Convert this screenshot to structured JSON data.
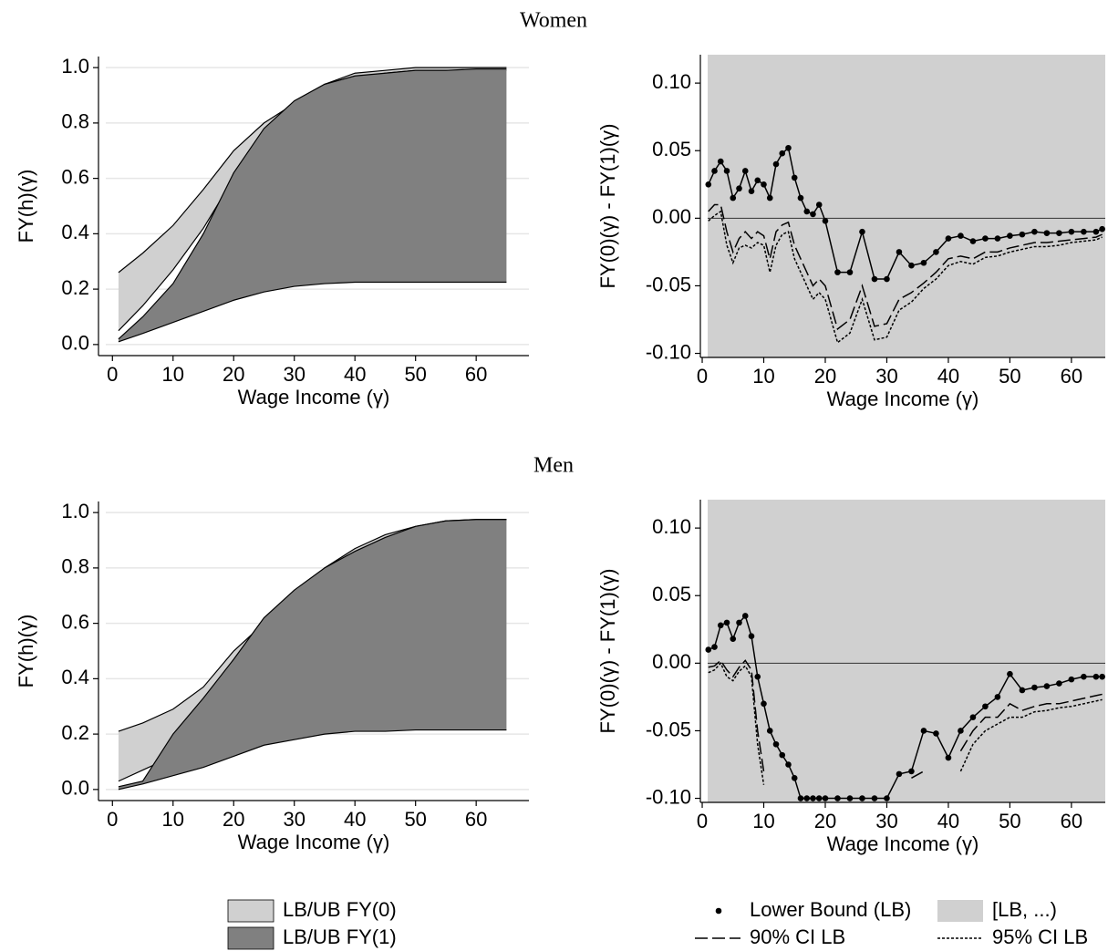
{
  "chart_data": [
    {
      "type": "area",
      "title": "Women",
      "x_label": "Wage Income (γ)",
      "y_label": "FY(h)(γ)",
      "x": [
        1,
        5,
        10,
        15,
        20,
        25,
        30,
        35,
        40,
        45,
        50,
        55,
        60,
        65
      ],
      "xlim": [
        -2.3,
        68.7
      ],
      "ylim": [
        -0.04,
        1.04
      ],
      "xticks": [
        0,
        10,
        20,
        30,
        40,
        50,
        60
      ],
      "yticks": [
        {
          "value": 0,
          "label": "0.0"
        },
        {
          "value": 0.2,
          "label": "0.2"
        },
        {
          "value": 0.4,
          "label": "0.4"
        },
        {
          "value": 0.6,
          "label": "0.6"
        },
        {
          "value": 0.8,
          "label": "0.8"
        },
        {
          "value": 1,
          "label": "1.0"
        }
      ],
      "grid": true,
      "series": [
        {
          "color": "#d0d0d0",
          "lower": [
            0.05,
            0.14,
            0.27,
            0.42,
            0.6,
            0.73,
            0.85,
            0.92,
            0.96,
            0.98,
            0.99,
            0.99,
            0.99,
            0.99
          ],
          "upper": [
            0.26,
            0.33,
            0.43,
            0.56,
            0.7,
            0.8,
            0.87,
            0.94,
            0.98,
            0.99,
            1,
            1,
            1,
            1
          ]
        },
        {
          "color": "#808080",
          "lower": [
            0.01,
            0.04,
            0.08,
            0.12,
            0.16,
            0.19,
            0.21,
            0.22,
            0.225,
            0.225,
            0.225,
            0.225,
            0.225,
            0.225
          ],
          "upper": [
            0.02,
            0.1,
            0.22,
            0.4,
            0.62,
            0.78,
            0.88,
            0.94,
            0.97,
            0.98,
            0.99,
            0.99,
            0.995,
            0.995
          ]
        }
      ]
    },
    {
      "type": "line",
      "x_label": "Wage Income (γ)",
      "y_label": "FY(0)(γ) - FY(1)(γ)",
      "x": [
        1,
        2,
        3,
        4,
        5,
        6,
        7,
        8,
        9,
        10,
        11,
        12,
        13,
        14,
        15,
        16,
        17,
        18,
        19,
        20,
        22,
        24,
        26,
        28,
        30,
        32,
        34,
        36,
        38,
        40,
        42,
        44,
        46,
        48,
        50,
        52,
        54,
        56,
        58,
        60,
        62,
        64,
        65
      ],
      "xlim": [
        -0.3,
        65.5
      ],
      "ylim": [
        -0.103,
        0.121
      ],
      "xticks": [
        0,
        10,
        20,
        30,
        40,
        50,
        60
      ],
      "yticks": [
        {
          "value": 0.1,
          "label": "0.10"
        },
        {
          "value": 0.05,
          "label": "0.05"
        },
        {
          "value": 0,
          "label": "0.00"
        },
        {
          "value": -0.05,
          "label": "-0.05"
        },
        {
          "value": -0.1,
          "label": "-0.10"
        }
      ],
      "hline": 0,
      "series": [
        {
          "color": "#000000",
          "style": "points",
          "values": [
            0.025,
            0.035,
            0.042,
            0.035,
            0.015,
            0.022,
            0.035,
            0.02,
            0.028,
            0.025,
            0.015,
            0.04,
            0.048,
            0.052,
            0.03,
            0.015,
            0.005,
            0.003,
            0.01,
            -0.002,
            -0.04,
            -0.04,
            -0.01,
            -0.045,
            -0.045,
            -0.025,
            -0.035,
            -0.033,
            -0.025,
            -0.015,
            -0.013,
            -0.017,
            -0.015,
            -0.015,
            -0.013,
            -0.012,
            -0.01,
            -0.011,
            -0.011,
            -0.01,
            -0.01,
            -0.01,
            -0.008
          ]
        },
        {
          "color": "#d0d0d0",
          "style": "region"
        },
        {
          "color": "#000000",
          "style": "dashed",
          "values": [
            0.005,
            0.01,
            0.01,
            -0.01,
            -0.025,
            -0.015,
            -0.01,
            -0.015,
            -0.01,
            -0.013,
            -0.03,
            -0.01,
            -0.005,
            -0.003,
            -0.02,
            -0.03,
            -0.04,
            -0.05,
            -0.045,
            -0.05,
            -0.082,
            -0.075,
            -0.05,
            -0.08,
            -0.078,
            -0.06,
            -0.055,
            -0.048,
            -0.04,
            -0.03,
            -0.028,
            -0.03,
            -0.025,
            -0.025,
            -0.022,
            -0.02,
            -0.018,
            -0.018,
            -0.017,
            -0.016,
            -0.015,
            -0.014,
            -0.012
          ]
        },
        {
          "color": "#000000",
          "style": "dotted",
          "values": [
            -0.002,
            0.002,
            0.005,
            -0.02,
            -0.033,
            -0.022,
            -0.02,
            -0.022,
            -0.018,
            -0.02,
            -0.04,
            -0.02,
            -0.012,
            -0.01,
            -0.03,
            -0.04,
            -0.05,
            -0.06,
            -0.055,
            -0.06,
            -0.092,
            -0.085,
            -0.06,
            -0.09,
            -0.088,
            -0.068,
            -0.062,
            -0.052,
            -0.045,
            -0.035,
            -0.032,
            -0.034,
            -0.029,
            -0.028,
            -0.025,
            -0.023,
            -0.021,
            -0.021,
            -0.02,
            -0.018,
            -0.017,
            -0.016,
            -0.014
          ]
        }
      ]
    },
    {
      "type": "area",
      "title": "Men",
      "x_label": "Wage Income (γ)",
      "y_label": "FY(h)(γ)",
      "x": [
        1,
        5,
        10,
        15,
        20,
        25,
        30,
        35,
        40,
        45,
        50,
        55,
        60,
        65
      ],
      "xlim": [
        -2.3,
        68.7
      ],
      "ylim": [
        -0.04,
        1.04
      ],
      "xticks": [
        0,
        10,
        20,
        30,
        40,
        50,
        60
      ],
      "yticks": [
        {
          "value": 0,
          "label": "0.0"
        },
        {
          "value": 0.2,
          "label": "0.2"
        },
        {
          "value": 0.4,
          "label": "0.4"
        },
        {
          "value": 0.6,
          "label": "0.6"
        },
        {
          "value": 0.8,
          "label": "0.8"
        },
        {
          "value": 1,
          "label": "1.0"
        }
      ],
      "grid": true,
      "series": [
        {
          "name": "LB/UB FY(0)",
          "color": "#d0d0d0",
          "lower": [
            0.03,
            0.07,
            0.12,
            0.27,
            0.42,
            0.5,
            0.58,
            0.68,
            0.8,
            0.88,
            0.93,
            0.96,
            0.97,
            0.975
          ],
          "upper": [
            0.21,
            0.24,
            0.29,
            0.37,
            0.5,
            0.6,
            0.7,
            0.8,
            0.87,
            0.92,
            0.95,
            0.97,
            0.975,
            0.975
          ]
        },
        {
          "name": "LB/UB FY(1)",
          "color": "#808080",
          "lower": [
            0,
            0.02,
            0.05,
            0.08,
            0.12,
            0.16,
            0.18,
            0.2,
            0.21,
            0.21,
            0.215,
            0.215,
            0.215,
            0.215
          ],
          "upper": [
            0.01,
            0.03,
            0.2,
            0.33,
            0.47,
            0.62,
            0.72,
            0.8,
            0.86,
            0.91,
            0.95,
            0.97,
            0.975,
            0.975
          ]
        }
      ]
    },
    {
      "type": "line",
      "x_label": "Wage Income (γ)",
      "y_label": "FY(0)(γ) - FY(1)(γ)",
      "x": [
        1,
        2,
        3,
        4,
        5,
        6,
        7,
        8,
        9,
        10,
        11,
        12,
        13,
        14,
        15,
        16,
        17,
        18,
        19,
        20,
        22,
        24,
        26,
        28,
        30,
        32,
        34,
        36,
        38,
        40,
        42,
        44,
        46,
        48,
        50,
        52,
        54,
        56,
        58,
        60,
        62,
        64,
        65
      ],
      "xlim": [
        -0.3,
        65.5
      ],
      "ylim": [
        -0.103,
        0.121
      ],
      "xticks": [
        0,
        10,
        20,
        30,
        40,
        50,
        60
      ],
      "yticks": [
        {
          "value": 0.1,
          "label": "0.10"
        },
        {
          "value": 0.05,
          "label": "0.05"
        },
        {
          "value": 0,
          "label": "0.00"
        },
        {
          "value": -0.05,
          "label": "-0.05"
        },
        {
          "value": -0.1,
          "label": "-0.10"
        }
      ],
      "hline": 0,
      "series": [
        {
          "name": "Lower Bound (LB)",
          "color": "#000000",
          "style": "points",
          "values": [
            0.01,
            0.012,
            0.028,
            0.03,
            0.018,
            0.03,
            0.035,
            0.02,
            -0.01,
            -0.03,
            -0.05,
            -0.06,
            -0.068,
            -0.075,
            -0.085,
            -0.1,
            -0.1,
            -0.1,
            -0.1,
            -0.1,
            -0.1,
            -0.1,
            -0.1,
            -0.1,
            -0.1,
            -0.082,
            -0.08,
            -0.05,
            -0.052,
            -0.07,
            -0.05,
            -0.04,
            -0.032,
            -0.025,
            -0.008,
            -0.02,
            -0.018,
            -0.017,
            -0.015,
            -0.012,
            -0.01,
            -0.01,
            -0.01
          ]
        },
        {
          "name": "[LB, ...)",
          "color": "#d0d0d0",
          "style": "region"
        },
        {
          "name": "90% CI LB",
          "color": "#000000",
          "style": "dashed",
          "values": [
            -0.003,
            -0.002,
            0.002,
            -0.005,
            -0.01,
            -0.003,
            0.002,
            -0.005,
            -0.05,
            -0.08,
            null,
            null,
            null,
            null,
            null,
            null,
            null,
            null,
            null,
            null,
            null,
            null,
            null,
            null,
            null,
            null,
            -0.085,
            -0.08,
            null,
            null,
            -0.065,
            -0.05,
            -0.04,
            -0.04,
            -0.03,
            -0.035,
            -0.032,
            -0.03,
            -0.03,
            -0.028,
            -0.026,
            -0.024,
            -0.023
          ]
        },
        {
          "name": "95% CI LB",
          "color": "#000000",
          "style": "dotted",
          "values": [
            -0.007,
            -0.005,
            0,
            -0.01,
            -0.013,
            -0.006,
            -0.002,
            -0.01,
            -0.06,
            -0.09,
            null,
            null,
            null,
            null,
            null,
            null,
            null,
            null,
            null,
            null,
            null,
            null,
            null,
            null,
            null,
            null,
            null,
            -0.092,
            null,
            null,
            -0.08,
            -0.06,
            -0.05,
            -0.045,
            -0.04,
            -0.04,
            -0.036,
            -0.035,
            -0.033,
            -0.032,
            -0.03,
            -0.028,
            -0.027
          ]
        }
      ]
    }
  ]
}
